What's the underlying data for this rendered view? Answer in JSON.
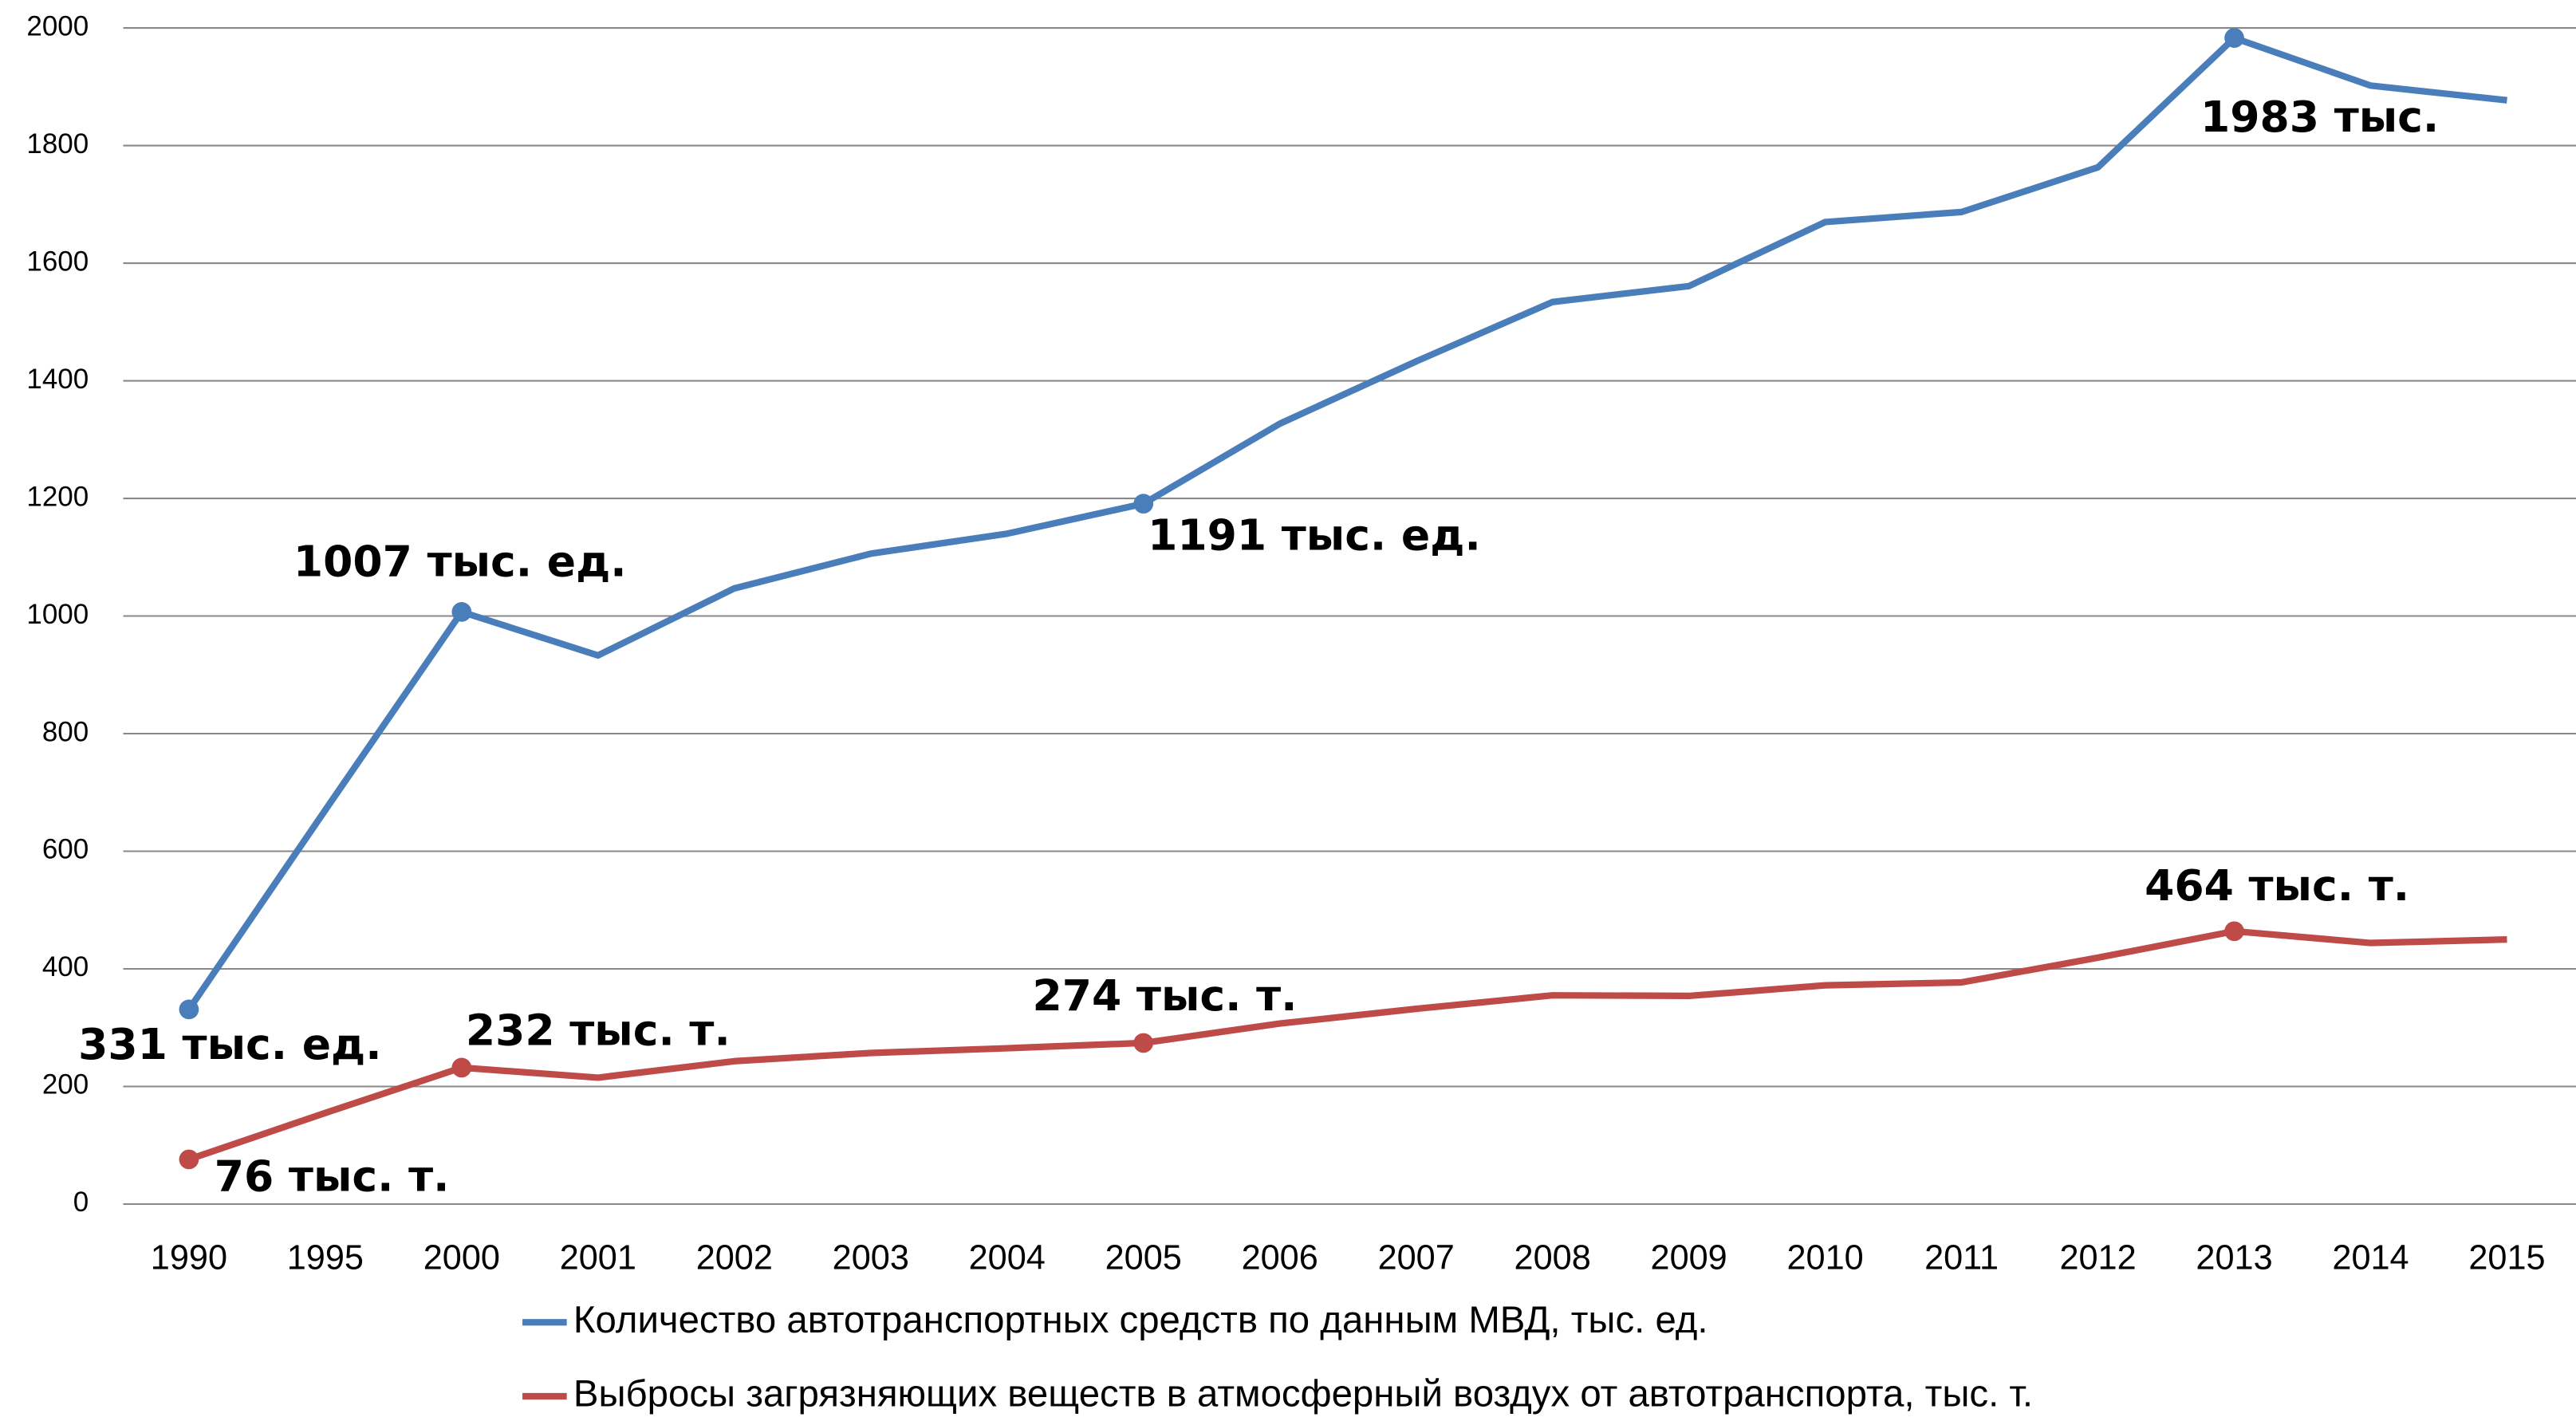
{
  "chart_data": {
    "type": "line",
    "categories": [
      "1990",
      "1995",
      "2000",
      "2001",
      "2002",
      "2003",
      "2004",
      "2005",
      "2006",
      "2007",
      "2008",
      "2009",
      "2010",
      "2011",
      "2012",
      "2013",
      "2014",
      "2015"
    ],
    "series": [
      {
        "name": "Количество автотранспортных средств по данным МВД, тыс. ед.",
        "color": "#4a7ebb",
        "values": [
          331,
          670,
          1007,
          933,
          1047,
          1106,
          1140,
          1191,
          1327,
          1433,
          1534,
          1561,
          1670,
          1687,
          1763,
          1983,
          1902,
          1877
        ],
        "value_labels": [
          "331 тыс. ед.",
          null,
          "1007 тыс. ед.",
          null,
          null,
          null,
          null,
          "1191 тыс. ед.",
          null,
          null,
          null,
          null,
          null,
          null,
          null,
          "1983 тыс.",
          null,
          null
        ]
      },
      {
        "name": "Выбросы загрязняющих веществ в атмосферный воздух от автотранспорта, тыс. т.",
        "color": "#be4b48",
        "values": [
          76,
          155,
          232,
          215,
          243,
          257,
          265,
          274,
          307,
          332,
          355,
          354,
          372,
          377,
          419,
          464,
          444,
          450
        ],
        "value_labels": [
          "76 тыс. т.",
          null,
          "232 тыс. т.",
          null,
          null,
          null,
          null,
          "274 тыс. т.",
          null,
          null,
          null,
          null,
          null,
          null,
          null,
          "464 тыс. т.",
          null,
          null
        ]
      }
    ],
    "ylim": [
      0,
      2000
    ],
    "yticks": [
      0,
      200,
      400,
      600,
      800,
      1000,
      1200,
      1400,
      1600,
      1800,
      2000
    ],
    "grid": true,
    "legend": "bottom"
  }
}
